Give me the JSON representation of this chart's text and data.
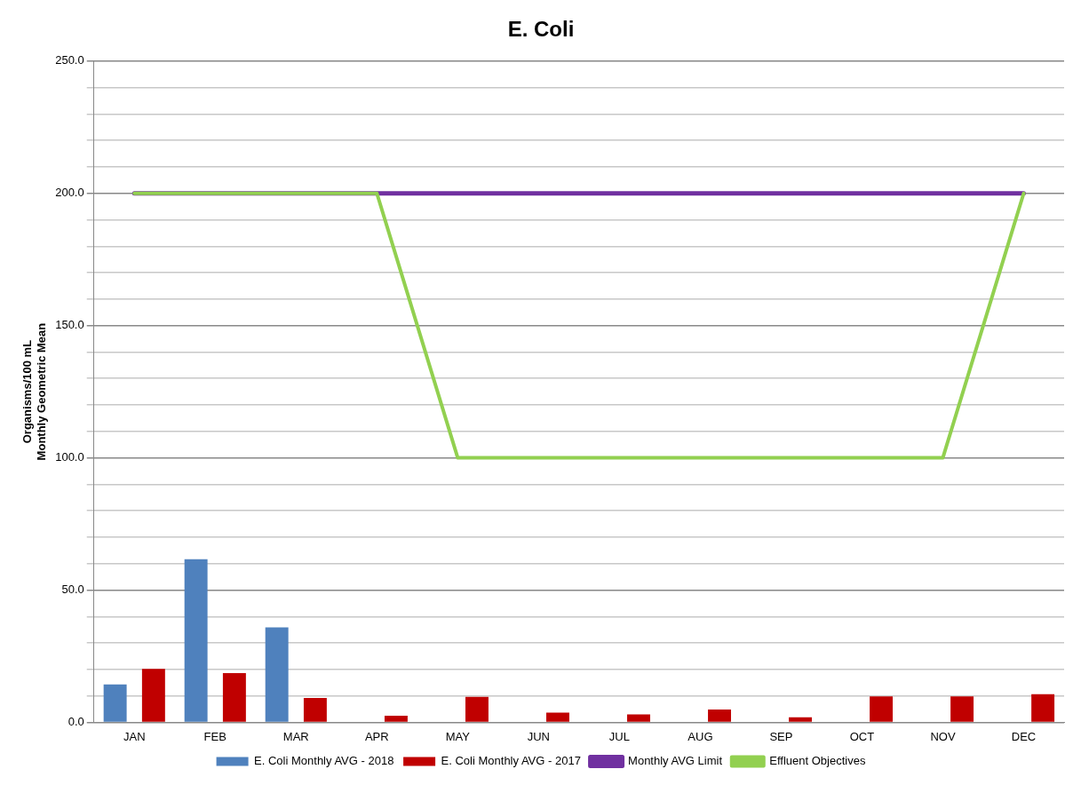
{
  "chart_data": {
    "type": "bar",
    "title": "E. Coli",
    "ylabel": "Organisms/100 mL\nMonthly Geometric Mean",
    "categories": [
      "JAN",
      "FEB",
      "MAR",
      "APR",
      "MAY",
      "JUN",
      "JUL",
      "AUG",
      "SEP",
      "OCT",
      "NOV",
      "DEC"
    ],
    "series": [
      {
        "name": "E. Coli Monthly AVG - 2018",
        "color": "#4f81bd",
        "values": [
          14.3,
          61.7,
          35.9,
          null,
          null,
          null,
          null,
          null,
          null,
          null,
          null,
          null
        ]
      },
      {
        "name": "E. Coli Monthly AVG - 2017",
        "color": "#c00000",
        "values": [
          20.2,
          18.6,
          9.2,
          2.5,
          9.6,
          3.7,
          3.0,
          4.8,
          1.9,
          9.8,
          9.8,
          10.6
        ]
      },
      {
        "name": "Monthly AVG Limit",
        "type": "line",
        "color": "#7030a0",
        "values": [
          200,
          200,
          200,
          200,
          200,
          200,
          200,
          200,
          200,
          200,
          200,
          200
        ]
      },
      {
        "name": "Effluent Objectives",
        "type": "line",
        "color": "#92d050",
        "values": [
          200,
          200,
          200,
          200,
          100,
          100,
          100,
          100,
          100,
          100,
          100,
          200
        ]
      }
    ],
    "ylim": [
      0,
      250
    ],
    "yticks": [
      {
        "value": 0,
        "label": "0.0"
      },
      {
        "value": 10,
        "label": null
      },
      {
        "value": 20,
        "label": null
      },
      {
        "value": 30,
        "label": null
      },
      {
        "value": 40,
        "label": null
      },
      {
        "value": 50,
        "label": "50.0"
      },
      {
        "value": 60,
        "label": null
      },
      {
        "value": 70,
        "label": null
      },
      {
        "value": 80,
        "label": null
      },
      {
        "value": 90,
        "label": null
      },
      {
        "value": 100,
        "label": "100.0"
      },
      {
        "value": 110,
        "label": null
      },
      {
        "value": 120,
        "label": null
      },
      {
        "value": 130,
        "label": null
      },
      {
        "value": 140,
        "label": null
      },
      {
        "value": 150,
        "label": "150.0"
      },
      {
        "value": 160,
        "label": null
      },
      {
        "value": 170,
        "label": null
      },
      {
        "value": 180,
        "label": null
      },
      {
        "value": 190,
        "label": null
      },
      {
        "value": 200,
        "label": "200.0"
      },
      {
        "value": 210,
        "label": null
      },
      {
        "value": 220,
        "label": null
      },
      {
        "value": 230,
        "label": null
      },
      {
        "value": 240,
        "label": null
      },
      {
        "value": 250,
        "label": "250.0"
      }
    ],
    "grid": "y",
    "legend": "bottom",
    "marker": "none",
    "line_style": "solid"
  }
}
